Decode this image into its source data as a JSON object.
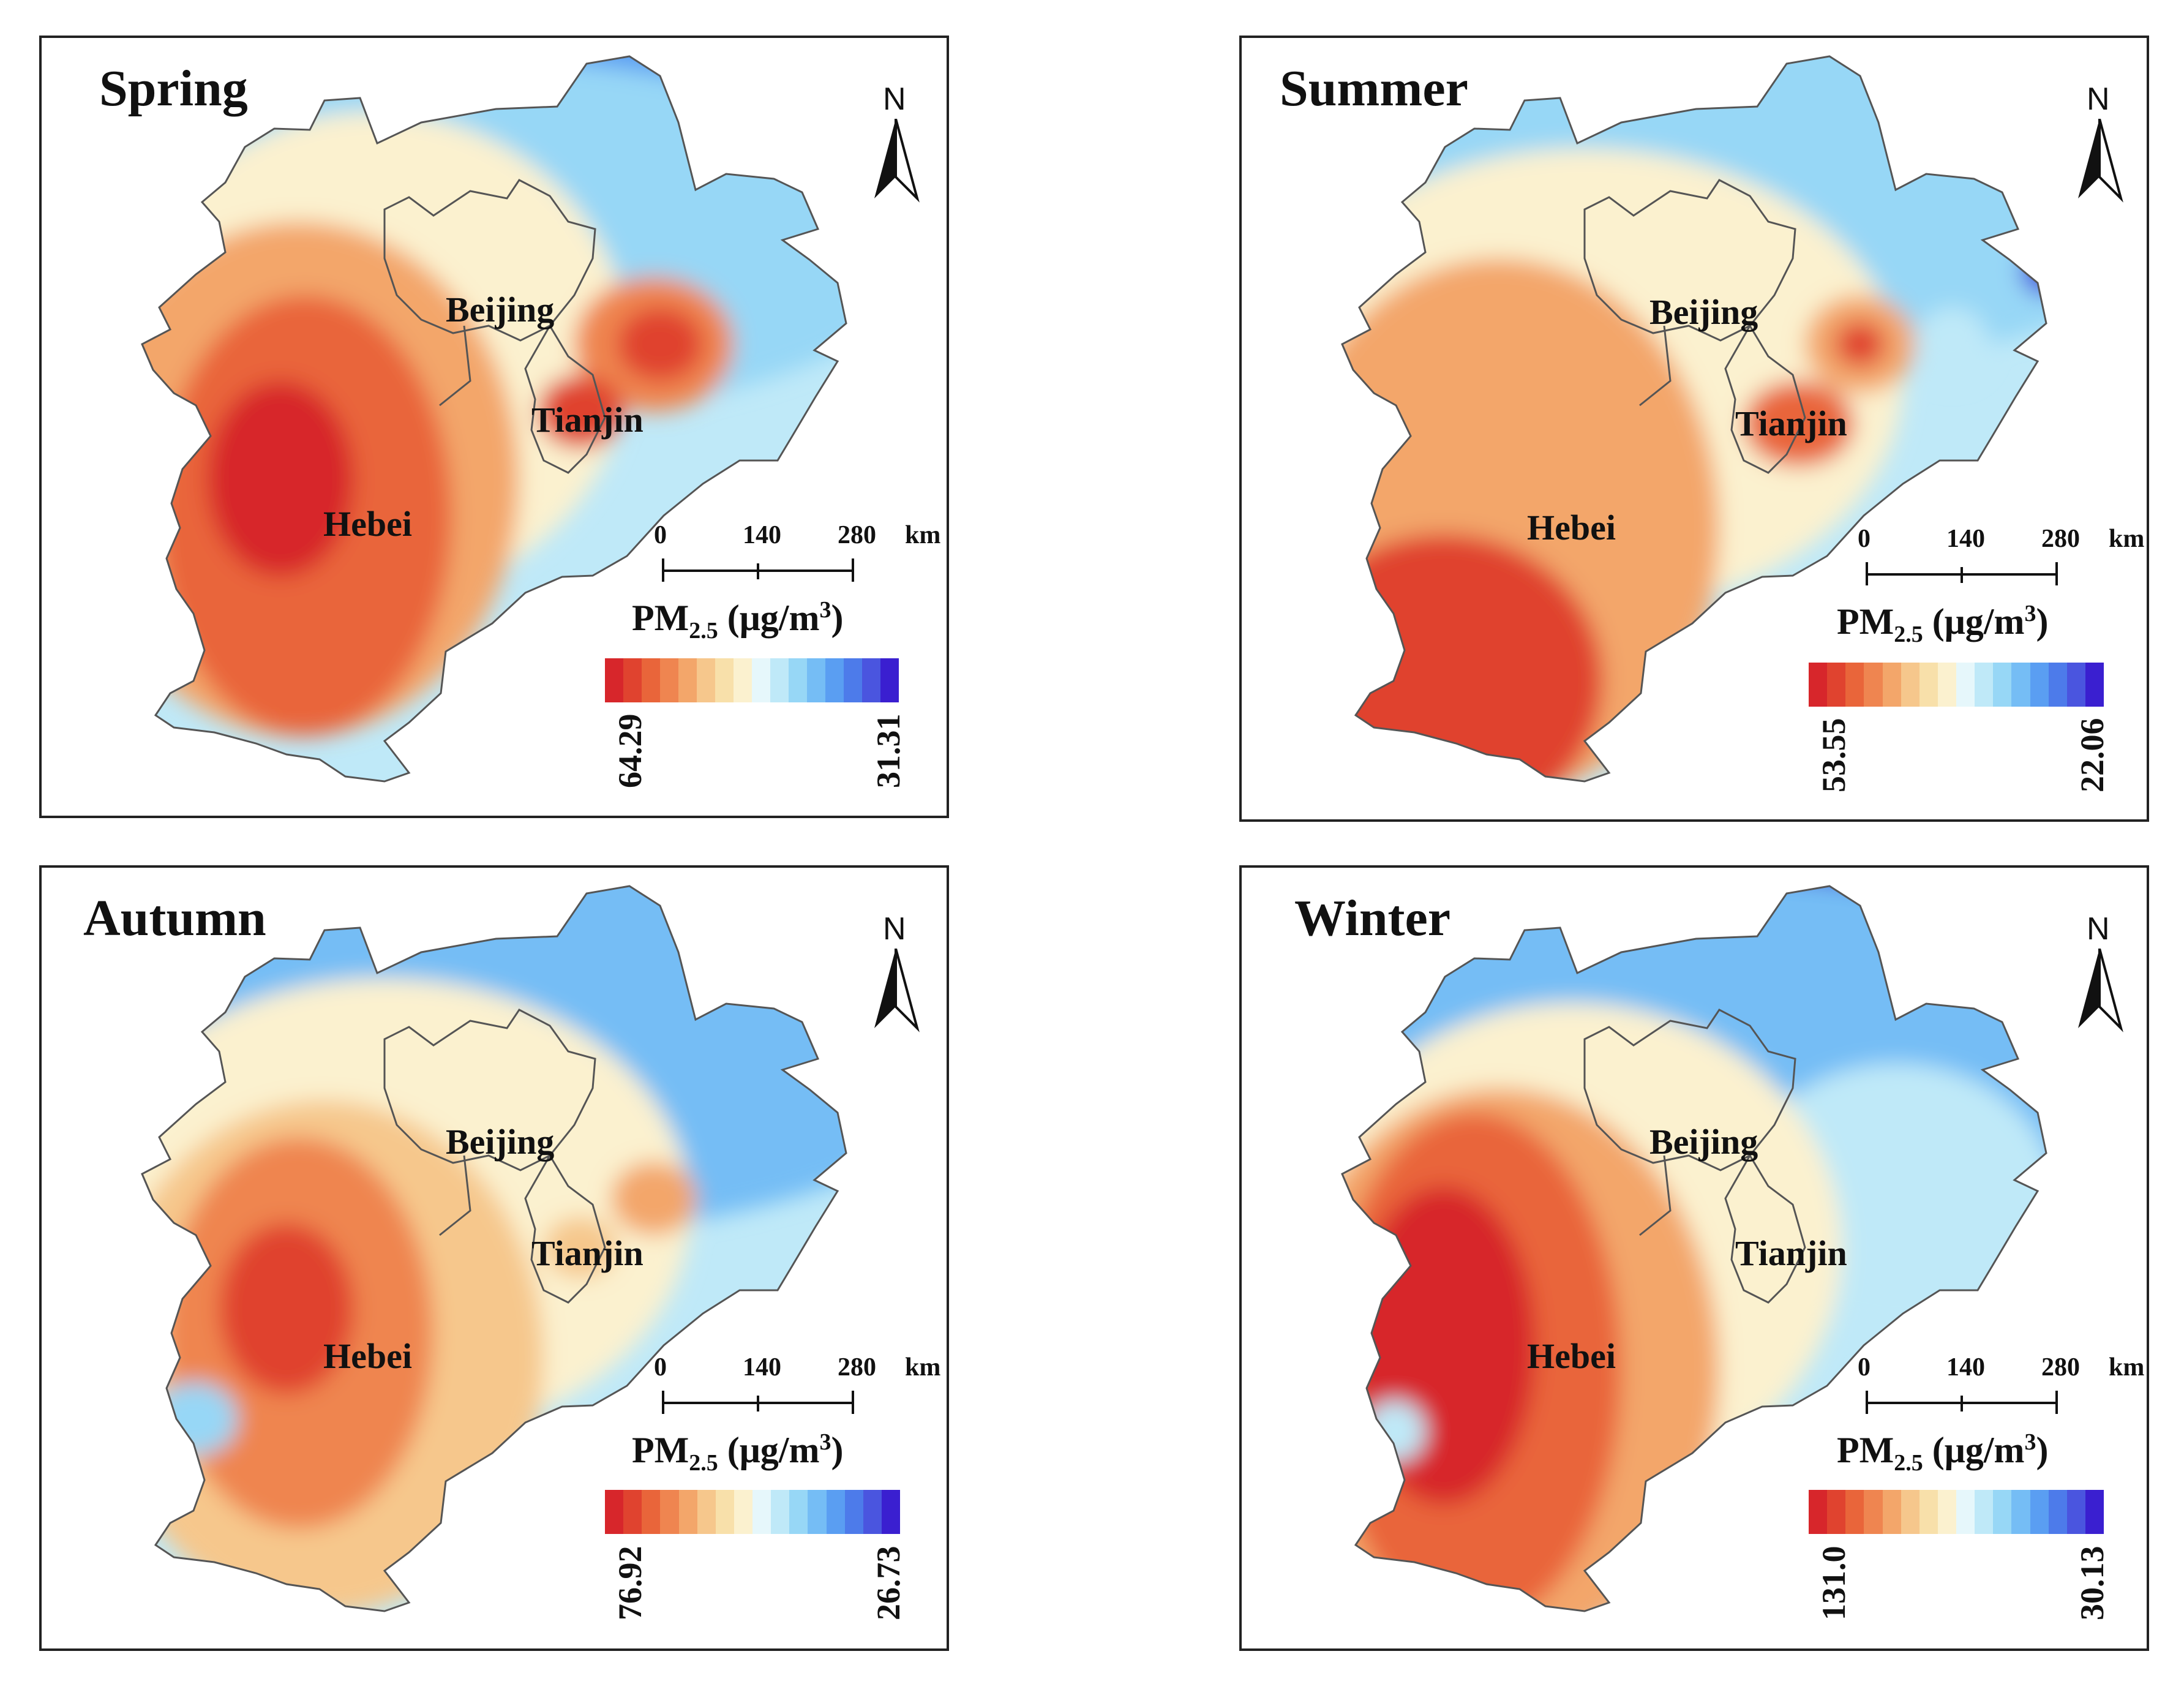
{
  "unit_label": "PM",
  "unit_sub": "2.5",
  "unit_rest": " (μg/m",
  "unit_sup": "3",
  "unit_close": ")",
  "north_label": "N",
  "scale": {
    "t0": "0",
    "t1": "140",
    "t2": "280",
    "unit": "km"
  },
  "regions": {
    "beijing": "Beijing",
    "tianjin": "Tianjin",
    "hebei": "Hebei"
  },
  "ramp": [
    "#d7262b",
    "#e0432f",
    "#e9653a",
    "#ef8550",
    "#f3a66a",
    "#f6c78c",
    "#f8e0aa",
    "#fbf1cf",
    "#e6f7fb",
    "#bfe9f8",
    "#97d7f6",
    "#75bdf5",
    "#5a9ef2",
    "#4d7bea",
    "#4a55df",
    "#3a1fd0"
  ],
  "panels": {
    "spring": {
      "title": "Spring",
      "max": "64.29",
      "min": "31.31"
    },
    "summer": {
      "title": "Summer",
      "max": "53.55",
      "min": "22.06"
    },
    "autumn": {
      "title": "Autumn",
      "max": "76.92",
      "min": "26.73"
    },
    "winter": {
      "title": "Winter",
      "max": "131.0",
      "min": "30.13"
    }
  }
}
